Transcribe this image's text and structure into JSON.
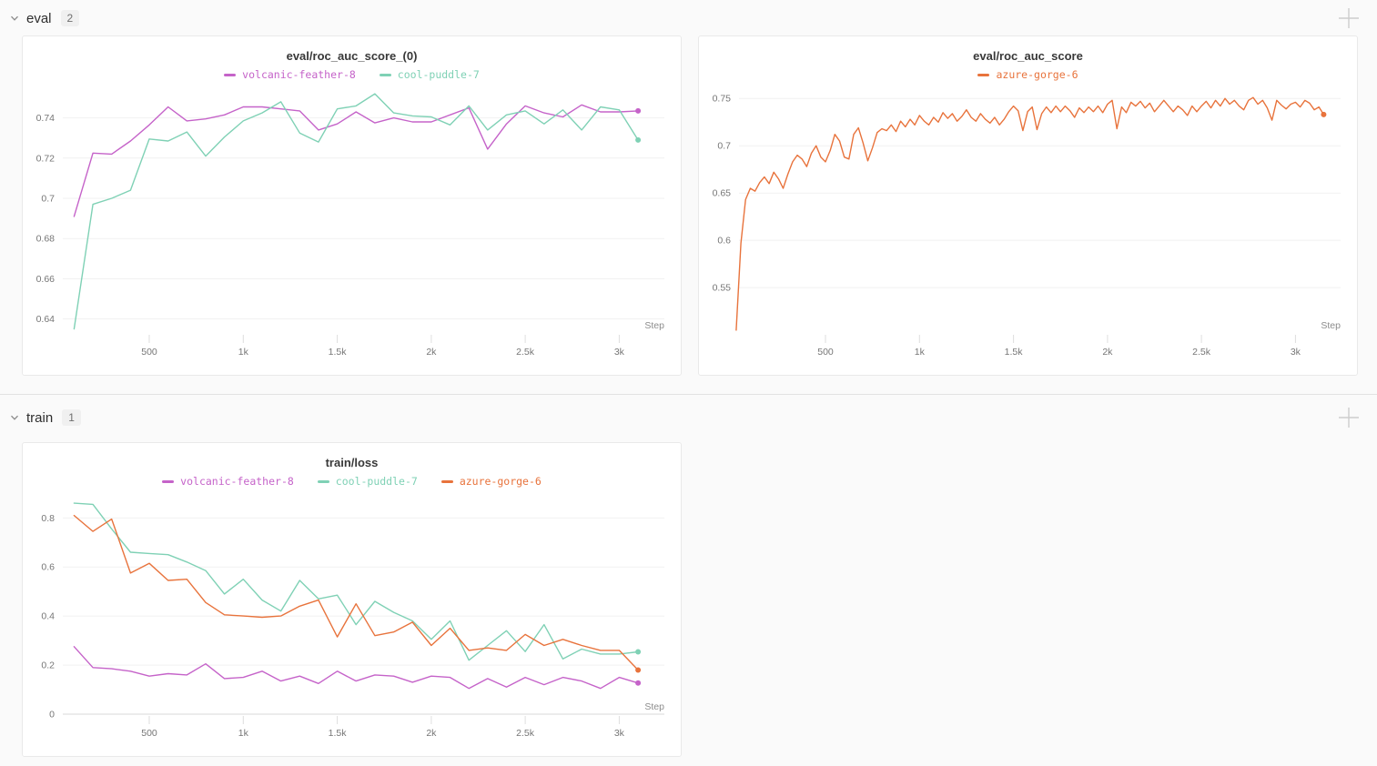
{
  "page": {
    "background": "#fafafa",
    "accent_colors": {
      "volcanic_feather": "#c563c9",
      "cool_puddle": "#7fd1b5",
      "azure_gorge": "#e8733c"
    }
  },
  "icons": {
    "collapse": "chevron-down-icon",
    "add_panel": "plus-icon",
    "legend_swatch": "dash-icon"
  },
  "sections": [
    {
      "title": "eval",
      "count": "2"
    },
    {
      "title": "train",
      "count": "1"
    }
  ],
  "chart_data": [
    {
      "type": "line",
      "title": "eval/roc_auc_score_(0)",
      "xlabel": "Step",
      "legend_position": "top",
      "grid": true,
      "xlim": [
        40,
        3240
      ],
      "ylim": [
        0.633,
        0.7525
      ],
      "y_tick_values": [
        0.64,
        0.66,
        0.68,
        0.7,
        0.72,
        0.74
      ],
      "y_tick_labels": [
        "0.64",
        "0.66",
        "0.68",
        "0.7",
        "0.72",
        "0.74"
      ],
      "x_tick_values": [
        500,
        1000,
        1500,
        2000,
        2500,
        3000
      ],
      "x_tick_labels": [
        "500",
        "1k",
        "1.5k",
        "2k",
        "2.5k",
        "3k"
      ],
      "x": [
        100,
        200,
        300,
        400,
        500,
        600,
        700,
        800,
        900,
        1000,
        1100,
        1200,
        1300,
        1400,
        1500,
        1600,
        1700,
        1800,
        1900,
        2000,
        2100,
        2200,
        2300,
        2400,
        2500,
        2600,
        2700,
        2800,
        2900,
        3000,
        3100
      ],
      "series": [
        {
          "name": "volcanic-feather-8",
          "color": "#c563c9",
          "values": [
            0.691,
            0.7225,
            0.722,
            0.7285,
            0.7365,
            0.7455,
            0.7385,
            0.7395,
            0.7415,
            0.7455,
            0.7455,
            0.7445,
            0.7435,
            0.734,
            0.737,
            0.743,
            0.7375,
            0.74,
            0.738,
            0.738,
            0.7415,
            0.745,
            0.7245,
            0.737,
            0.746,
            0.7425,
            0.7405,
            0.7465,
            0.743,
            0.743,
            0.7435
          ]
        },
        {
          "name": "cool-puddle-7",
          "color": "#7fd1b5",
          "values": [
            0.635,
            0.697,
            0.7,
            0.704,
            0.7295,
            0.7285,
            0.733,
            0.721,
            0.7305,
            0.7385,
            0.7425,
            0.748,
            0.7325,
            0.728,
            0.7445,
            0.746,
            0.752,
            0.7425,
            0.741,
            0.7405,
            0.7365,
            0.746,
            0.734,
            0.7415,
            0.7435,
            0.737,
            0.744,
            0.734,
            0.7455,
            0.744,
            0.729
          ]
        }
      ]
    },
    {
      "type": "line",
      "title": "eval/roc_auc_score",
      "xlabel": "Step",
      "legend_position": "top",
      "grid": true,
      "xlim": [
        40,
        3240
      ],
      "ylim": [
        0.502,
        0.756
      ],
      "y_tick_values": [
        0.55,
        0.6,
        0.65,
        0.7,
        0.75
      ],
      "y_tick_labels": [
        "0.55",
        "0.6",
        "0.65",
        "0.7",
        "0.75"
      ],
      "x_tick_values": [
        500,
        1000,
        1500,
        2000,
        2500,
        3000
      ],
      "x_tick_labels": [
        "500",
        "1k",
        "1.5k",
        "2k",
        "2.5k",
        "3k"
      ],
      "x": [
        25,
        50,
        75,
        100,
        125,
        150,
        175,
        200,
        225,
        250,
        275,
        300,
        325,
        350,
        375,
        400,
        425,
        450,
        475,
        500,
        525,
        550,
        575,
        600,
        625,
        650,
        675,
        700,
        725,
        750,
        775,
        800,
        825,
        850,
        875,
        900,
        925,
        950,
        975,
        1000,
        1025,
        1050,
        1075,
        1100,
        1125,
        1150,
        1175,
        1200,
        1225,
        1250,
        1275,
        1300,
        1325,
        1350,
        1375,
        1400,
        1425,
        1450,
        1475,
        1500,
        1525,
        1550,
        1575,
        1600,
        1625,
        1650,
        1675,
        1700,
        1725,
        1750,
        1775,
        1800,
        1825,
        1850,
        1875,
        1900,
        1925,
        1950,
        1975,
        2000,
        2025,
        2050,
        2075,
        2100,
        2125,
        2150,
        2175,
        2200,
        2225,
        2250,
        2275,
        2300,
        2325,
        2350,
        2375,
        2400,
        2425,
        2450,
        2475,
        2500,
        2525,
        2550,
        2575,
        2600,
        2625,
        2650,
        2675,
        2700,
        2725,
        2750,
        2775,
        2800,
        2825,
        2850,
        2875,
        2900,
        2925,
        2950,
        2975,
        3000,
        3025,
        3050,
        3075,
        3100,
        3125,
        3150
      ],
      "series": [
        {
          "name": "azure-gorge-6",
          "color": "#e8733c",
          "values": [
            0.505,
            0.597,
            0.643,
            0.655,
            0.652,
            0.661,
            0.667,
            0.66,
            0.672,
            0.665,
            0.655,
            0.67,
            0.683,
            0.69,
            0.686,
            0.678,
            0.692,
            0.7,
            0.688,
            0.683,
            0.695,
            0.712,
            0.705,
            0.688,
            0.686,
            0.712,
            0.719,
            0.703,
            0.684,
            0.698,
            0.714,
            0.718,
            0.716,
            0.722,
            0.715,
            0.726,
            0.72,
            0.728,
            0.722,
            0.732,
            0.726,
            0.722,
            0.73,
            0.725,
            0.735,
            0.729,
            0.734,
            0.726,
            0.731,
            0.738,
            0.73,
            0.726,
            0.734,
            0.728,
            0.724,
            0.73,
            0.722,
            0.728,
            0.736,
            0.742,
            0.737,
            0.716,
            0.736,
            0.741,
            0.717,
            0.734,
            0.741,
            0.735,
            0.742,
            0.736,
            0.742,
            0.737,
            0.73,
            0.74,
            0.735,
            0.741,
            0.736,
            0.742,
            0.735,
            0.744,
            0.748,
            0.718,
            0.741,
            0.735,
            0.746,
            0.742,
            0.747,
            0.74,
            0.745,
            0.736,
            0.742,
            0.748,
            0.742,
            0.736,
            0.742,
            0.738,
            0.732,
            0.742,
            0.736,
            0.742,
            0.747,
            0.74,
            0.748,
            0.742,
            0.75,
            0.744,
            0.748,
            0.742,
            0.738,
            0.748,
            0.751,
            0.744,
            0.748,
            0.74,
            0.727,
            0.748,
            0.743,
            0.739,
            0.744,
            0.746,
            0.741,
            0.748,
            0.745,
            0.738,
            0.741,
            0.733
          ]
        }
      ]
    },
    {
      "type": "line",
      "title": "train/loss",
      "xlabel": "Step",
      "legend_position": "top",
      "grid": true,
      "baseline": 0,
      "xlim": [
        40,
        3240
      ],
      "ylim": [
        0,
        0.89
      ],
      "y_tick_values": [
        0,
        0.2,
        0.4,
        0.6,
        0.8
      ],
      "y_tick_labels": [
        "0",
        "0.2",
        "0.4",
        "0.6",
        "0.8"
      ],
      "x_tick_values": [
        500,
        1000,
        1500,
        2000,
        2500,
        3000
      ],
      "x_tick_labels": [
        "500",
        "1k",
        "1.5k",
        "2k",
        "2.5k",
        "3k"
      ],
      "x": [
        100,
        200,
        300,
        400,
        500,
        600,
        700,
        800,
        900,
        1000,
        1100,
        1200,
        1300,
        1400,
        1500,
        1600,
        1700,
        1800,
        1900,
        2000,
        2100,
        2200,
        2300,
        2400,
        2500,
        2600,
        2700,
        2800,
        2900,
        3000,
        3100
      ],
      "series": [
        {
          "name": "volcanic-feather-8",
          "color": "#c563c9",
          "values": [
            0.275,
            0.19,
            0.185,
            0.175,
            0.155,
            0.165,
            0.16,
            0.205,
            0.145,
            0.15,
            0.175,
            0.135,
            0.155,
            0.125,
            0.175,
            0.135,
            0.16,
            0.155,
            0.13,
            0.155,
            0.15,
            0.105,
            0.145,
            0.11,
            0.15,
            0.12,
            0.15,
            0.135,
            0.105,
            0.15,
            0.127
          ]
        },
        {
          "name": "cool-puddle-7",
          "color": "#7fd1b5",
          "values": [
            0.86,
            0.855,
            0.755,
            0.66,
            0.655,
            0.65,
            0.62,
            0.585,
            0.49,
            0.55,
            0.465,
            0.42,
            0.545,
            0.47,
            0.485,
            0.365,
            0.46,
            0.415,
            0.38,
            0.305,
            0.38,
            0.22,
            0.28,
            0.34,
            0.255,
            0.365,
            0.225,
            0.265,
            0.245,
            0.245,
            0.254
          ]
        },
        {
          "name": "azure-gorge-6",
          "color": "#e8733c",
          "values": [
            0.81,
            0.745,
            0.795,
            0.575,
            0.615,
            0.545,
            0.55,
            0.455,
            0.405,
            0.4,
            0.395,
            0.4,
            0.44,
            0.465,
            0.315,
            0.45,
            0.32,
            0.335,
            0.375,
            0.28,
            0.35,
            0.26,
            0.27,
            0.26,
            0.325,
            0.28,
            0.305,
            0.28,
            0.26,
            0.26,
            0.18
          ]
        }
      ]
    }
  ]
}
